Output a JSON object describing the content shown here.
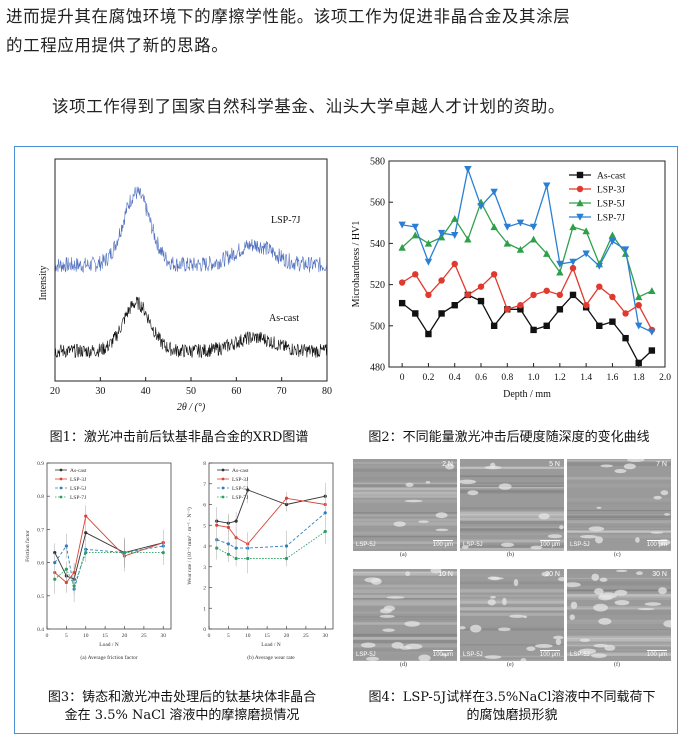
{
  "article": {
    "p1": "进而提升其在腐蚀环境下的摩擦学性能。该项工作为促进非晶合金及其涂层",
    "p2": "的工程应用提供了新的思路。",
    "p3": "该项工作得到了国家自然科学基金、汕头大学卓越人才计划的资助。"
  },
  "fig1": {
    "caption": "图1：激光冲击前后钛基非晶合金的XRD图谱",
    "ylabel": "Intensity",
    "xlabel": "2θ / (°)",
    "xticks": [
      "20",
      "30",
      "40",
      "50",
      "60",
      "70",
      "80"
    ],
    "label_top": "LSP-7J",
    "label_bottom": "As-cast",
    "colors": {
      "top": "#4f6fbf",
      "bottom": "#111111"
    }
  },
  "fig2": {
    "caption": "图2：不同能量激光冲击后硬度随深度的变化曲线",
    "chart_data": {
      "type": "line",
      "xlabel": "Depth / mm",
      "ylabel": "Microhardness / HV1",
      "xlim": [
        -0.1,
        2.0
      ],
      "ylim": [
        480,
        580
      ],
      "xticks": [
        "0",
        "0.2",
        "0.4",
        "0.6",
        "0.8",
        "1.0",
        "1.2",
        "1.4",
        "1.6",
        "1.8",
        "2.0"
      ],
      "yticks": [
        "480",
        "500",
        "520",
        "540",
        "560",
        "580"
      ],
      "x": [
        0,
        0.1,
        0.2,
        0.3,
        0.4,
        0.5,
        0.6,
        0.7,
        0.8,
        0.9,
        1.0,
        1.1,
        1.2,
        1.3,
        1.4,
        1.5,
        1.6,
        1.7,
        1.8,
        1.9
      ],
      "legend_position": "top-right",
      "series": [
        {
          "name": "As-cast",
          "color": "#111111",
          "marker": "square",
          "values": [
            511,
            506,
            496,
            506,
            510,
            515,
            512,
            500,
            508,
            508,
            498,
            500,
            508,
            515,
            509,
            500,
            502,
            494,
            482,
            488
          ]
        },
        {
          "name": "LSP-3J",
          "color": "#e03a2f",
          "marker": "circle",
          "values": [
            521,
            525,
            515,
            522,
            530,
            515,
            519,
            525,
            508,
            510,
            515,
            517,
            515,
            528,
            510,
            519,
            514,
            506,
            510,
            498
          ]
        },
        {
          "name": "LSP-5J",
          "color": "#2fa04a",
          "marker": "triangle-up",
          "values": [
            538,
            544,
            540,
            543,
            552,
            542,
            560,
            548,
            540,
            537,
            542,
            535,
            526,
            548,
            546,
            530,
            544,
            535,
            514,
            517
          ]
        },
        {
          "name": "LSP-7J",
          "color": "#2a7fd4",
          "marker": "triangle-down",
          "values": [
            549,
            548,
            531,
            545,
            544,
            576,
            558,
            565,
            548,
            550,
            548,
            568,
            530,
            531,
            535,
            529,
            541,
            537,
            500,
            497
          ]
        }
      ]
    }
  },
  "fig3": {
    "caption_line1": "图3：铸态和激光冲击处理后的钛基块体非晶合",
    "caption_line2": "金在 3.5% NaCl 溶液中的摩擦磨损情况",
    "a": {
      "chart_data": {
        "type": "line",
        "xlabel": "Load / N",
        "ylabel": "Friction factor",
        "subtitle": "(a) Average friction factor",
        "xticks": [
          "0",
          "5",
          "10",
          "15",
          "20",
          "25",
          "30"
        ],
        "yticks": [
          "0.4",
          "0.5",
          "0.6",
          "0.7",
          "0.8",
          "0.9"
        ],
        "xlim": [
          0,
          32
        ],
        "ylim": [
          0.4,
          0.9
        ],
        "x": [
          2,
          5,
          7,
          10,
          20,
          30
        ],
        "series": [
          {
            "name": "As-cast",
            "color": "#333333",
            "values": [
              0.63,
              0.56,
              0.55,
              0.69,
              0.63,
              0.66
            ]
          },
          {
            "name": "LSP-3J",
            "color": "#d9443a",
            "values": [
              0.57,
              0.54,
              0.57,
              0.74,
              0.62,
              0.66
            ]
          },
          {
            "name": "LSP-5J",
            "color": "#2f7fbf",
            "values": [
              0.6,
              0.65,
              0.52,
              0.64,
              0.63,
              0.65
            ]
          },
          {
            "name": "LSP-7J",
            "color": "#2aa060",
            "values": [
              0.55,
              0.58,
              0.53,
              0.63,
              0.63,
              0.63
            ]
          }
        ]
      }
    },
    "b": {
      "chart_data": {
        "type": "line",
        "xlabel": "Load / N",
        "ylabel": "Wear rate / (10⁻⁵ mm³ · m⁻¹ · N⁻¹)",
        "subtitle": "(b) Average wear rate",
        "xticks": [
          "0",
          "5",
          "10",
          "15",
          "20",
          "25",
          "30"
        ],
        "yticks": [
          "0",
          "1",
          "2",
          "3",
          "4",
          "5",
          "6",
          "7",
          "8"
        ],
        "xlim": [
          0,
          32
        ],
        "ylim": [
          0,
          8
        ],
        "x": [
          2,
          5,
          7,
          10,
          20,
          30
        ],
        "series": [
          {
            "name": "As-cast",
            "color": "#333333",
            "values": [
              5.2,
              5.1,
              5.2,
              6.7,
              6.0,
              6.4
            ]
          },
          {
            "name": "LSP-3J",
            "color": "#d9443a",
            "values": [
              5.0,
              4.9,
              4.4,
              4.1,
              6.3,
              6.0
            ]
          },
          {
            "name": "LSP-5J",
            "color": "#2f7fbf",
            "values": [
              4.3,
              4.1,
              3.9,
              3.9,
              4.0,
              5.6
            ]
          },
          {
            "name": "LSP-7J",
            "color": "#2aa060",
            "values": [
              3.9,
              3.6,
              3.4,
              3.4,
              3.4,
              4.7
            ]
          }
        ]
      }
    }
  },
  "fig4": {
    "caption_line1": "图4：LSP-5J试样在3.5%NaCl溶液中不同载荷下",
    "caption_line2": "的腐蚀磨损形貌",
    "panels": [
      {
        "load": "2 N",
        "sample": "LSP-5J",
        "scale": "100 μm",
        "sub": "(a)"
      },
      {
        "load": "5 N",
        "sample": "LSP-5J",
        "scale": "100 μm",
        "sub": "(b)"
      },
      {
        "load": "7 N",
        "sample": "LSP-5J",
        "scale": "100 μm",
        "sub": "(c)"
      },
      {
        "load": "10 N",
        "sample": "LSP-5J",
        "scale": "100 μm",
        "sub": "(d)"
      },
      {
        "load": "20 N",
        "sample": "LSP-5J",
        "scale": "100 μm",
        "sub": "(e)"
      },
      {
        "load": "30 N",
        "sample": "LSP-5J",
        "scale": "100 μm",
        "sub": "(f)"
      }
    ]
  }
}
